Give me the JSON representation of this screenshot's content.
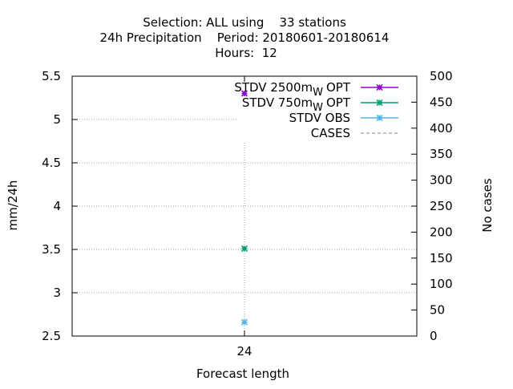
{
  "chart_data": {
    "type": "scatter",
    "title": [
      "Selection: ALL using    33 stations",
      "24h Precipitation    Period: 20180601-20180614",
      "Hours:  12"
    ],
    "xlabel": "Forecast length",
    "ylabel": "mm/24h",
    "y2label": "No cases",
    "categories": [
      "24"
    ],
    "ylim": [
      2.5,
      5.5
    ],
    "y2lim": [
      0,
      500
    ],
    "yticks": [
      "2.5",
      "3",
      "3.5",
      "4",
      "4.5",
      "5",
      "5.5"
    ],
    "y2ticks": [
      "0",
      "50",
      "100",
      "150",
      "200",
      "250",
      "300",
      "350",
      "400",
      "450",
      "500"
    ],
    "grid": true,
    "legend_position": "top-right",
    "series": [
      {
        "name": "STDV 2500m",
        "name_sub": "W",
        "name_suffix": "OPT",
        "axis": "y",
        "values": [
          5.3
        ],
        "color": "#9400d3",
        "marker": "x-star",
        "line": "solid"
      },
      {
        "name": "STDV 750m",
        "name_sub": "W",
        "name_suffix": "OPT",
        "axis": "y",
        "values": [
          3.51
        ],
        "color": "#009e73",
        "marker": "x-star",
        "line": "solid"
      },
      {
        "name": "STDV OBS",
        "name_sub": "",
        "name_suffix": "",
        "axis": "y",
        "values": [
          2.66
        ],
        "color": "#56b4e9",
        "marker": "x-star",
        "line": "solid"
      },
      {
        "name": "CASES",
        "name_sub": "",
        "name_suffix": "",
        "axis": "y2",
        "values": [
          372
        ],
        "color": "#808080",
        "marker": "none",
        "line": "dashed"
      }
    ]
  }
}
